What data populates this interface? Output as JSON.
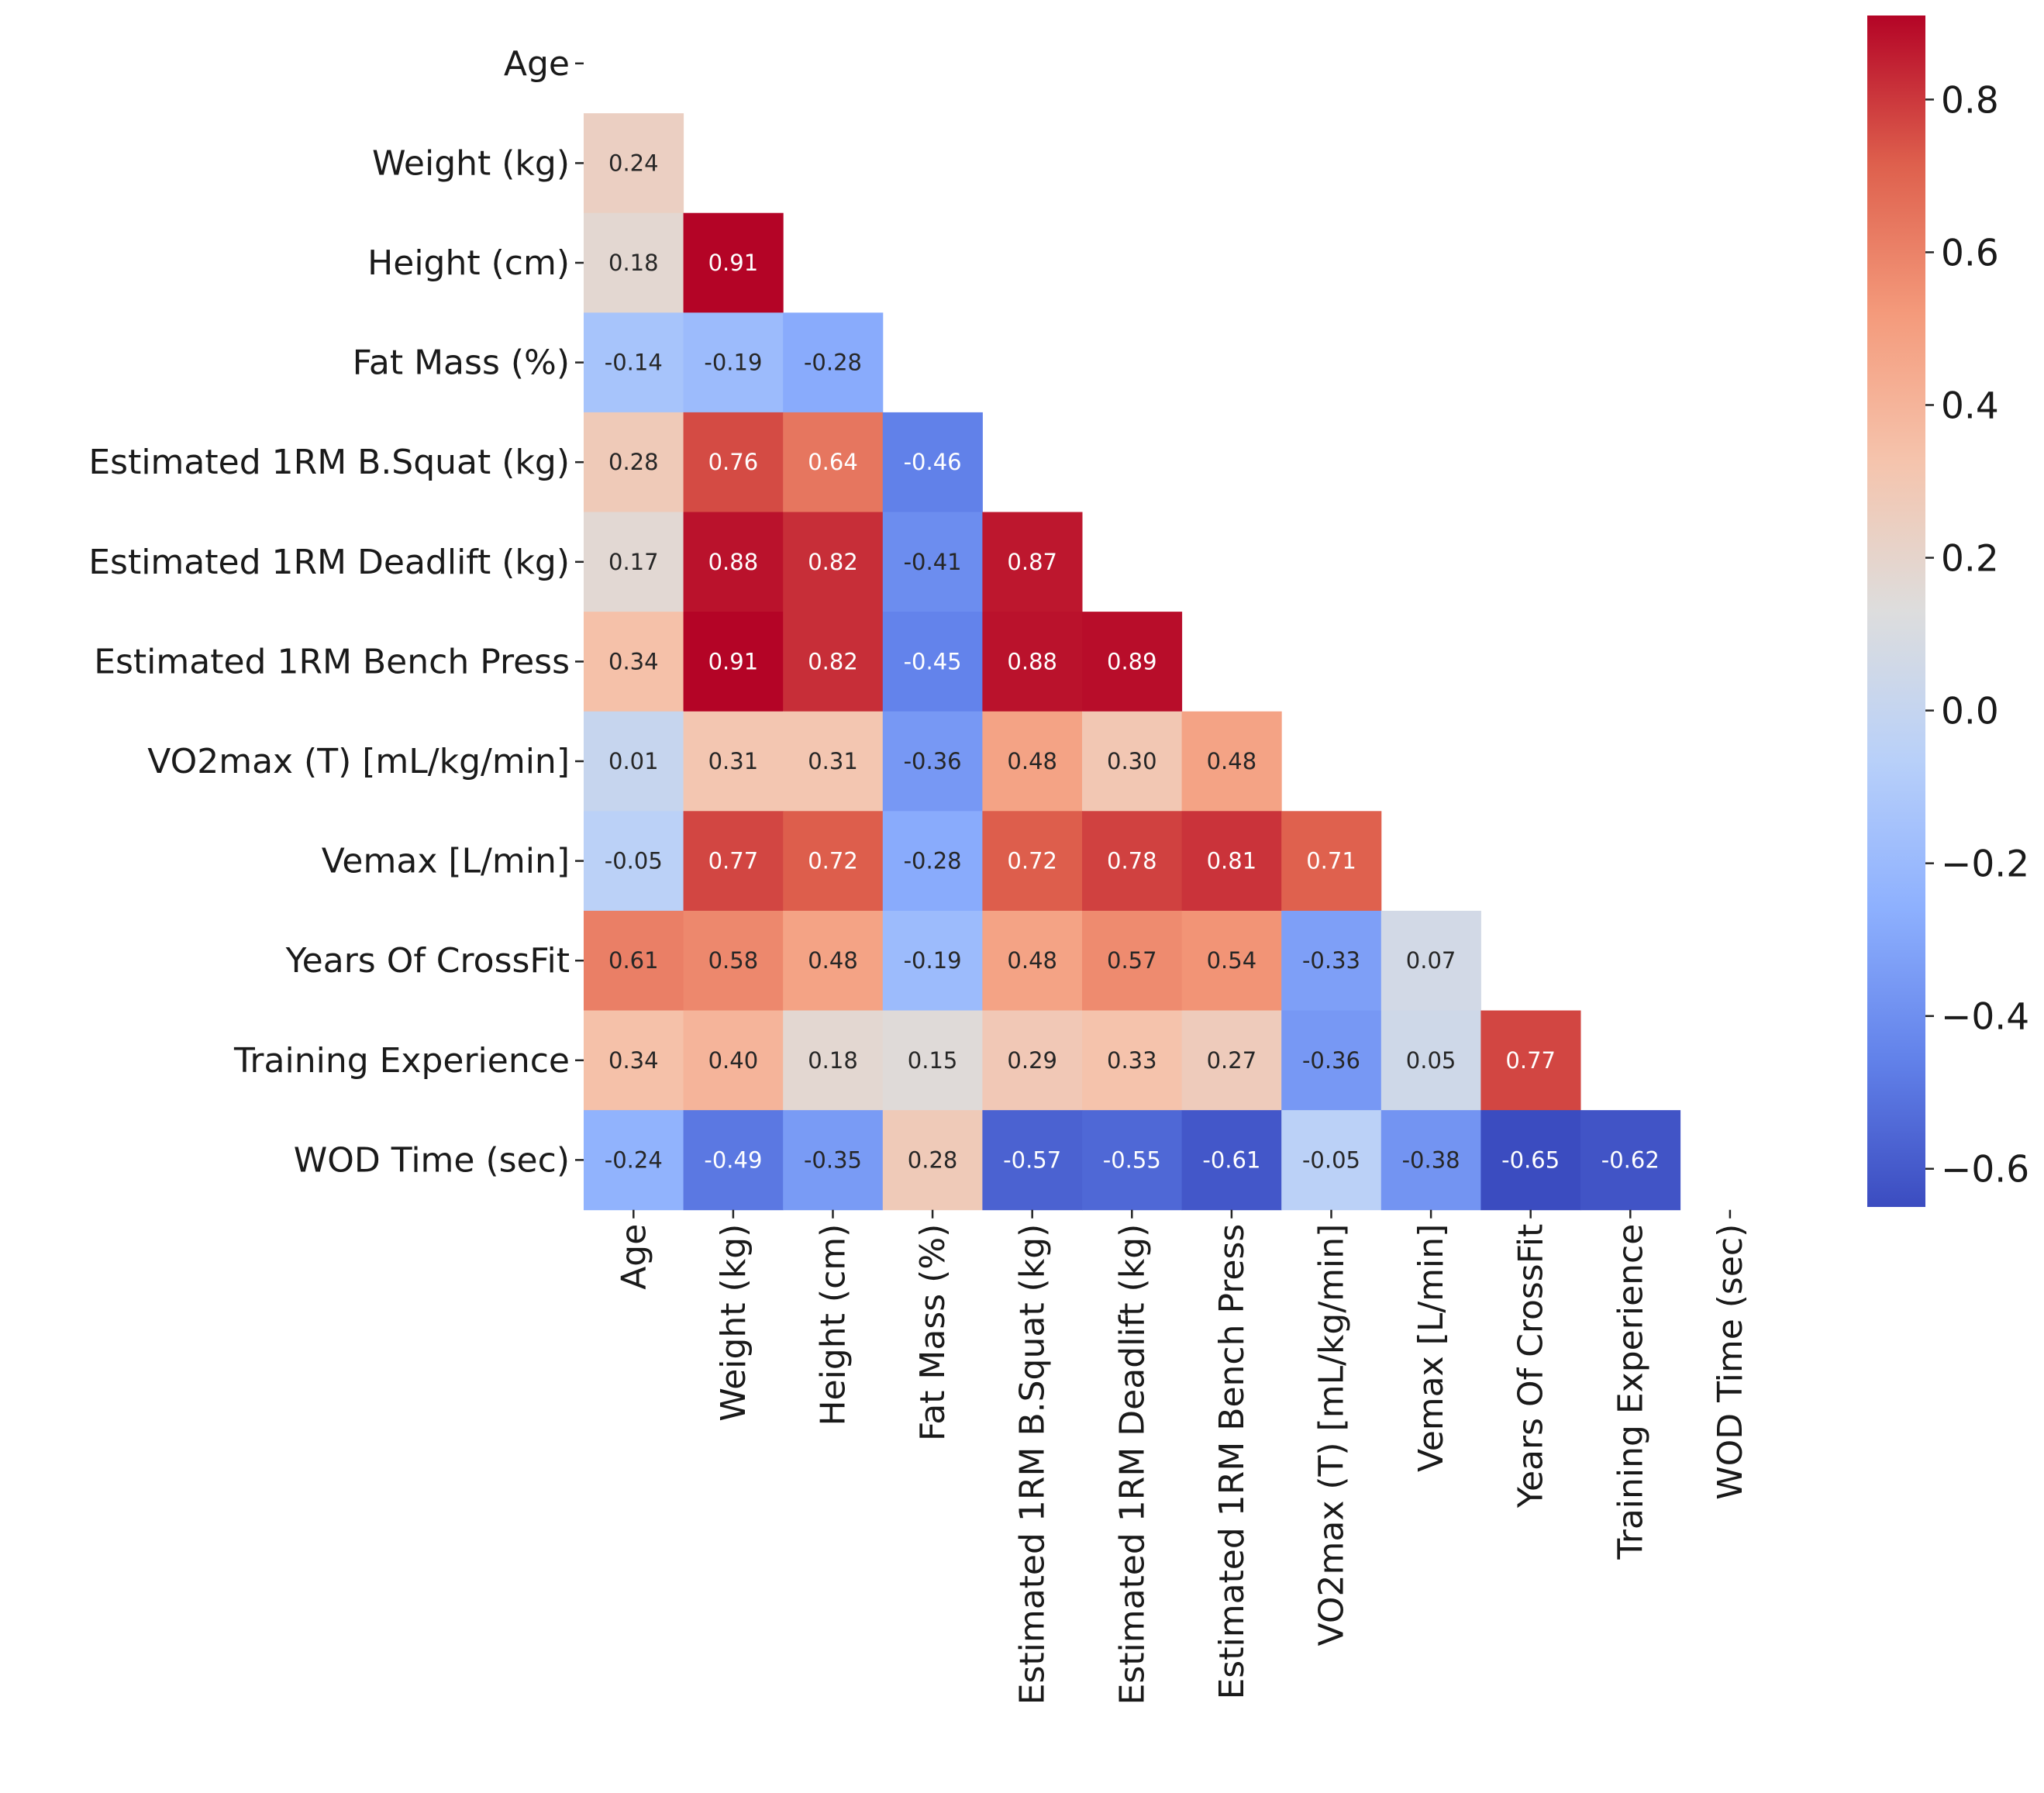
{
  "chart_data": {
    "type": "heatmap",
    "title": "",
    "xlabel": "",
    "ylabel": "",
    "colormap": "coolwarm",
    "vmin": -0.65,
    "vmax": 0.91,
    "mask": "upper-triangle-including-diagonal",
    "labels": [
      "Age",
      "Weight (kg)",
      "Height (cm)",
      "Fat Mass (%)",
      "Estimated 1RM B.Squat (kg)",
      "Estimated 1RM Deadlift (kg)",
      "Estimated 1RM Bench Press",
      "VO2max (T) [mL/kg/min]",
      "Vemax [L/min]",
      "Years Of CrossFit",
      "Training Experience",
      "WOD Time (sec)"
    ],
    "matrix": [
      [],
      [
        "0.24"
      ],
      [
        "0.18",
        "0.91"
      ],
      [
        "-0.14",
        "-0.19",
        "-0.28"
      ],
      [
        "0.28",
        "0.76",
        "0.64",
        "-0.46"
      ],
      [
        "0.17",
        "0.88",
        "0.82",
        "-0.41",
        "0.87"
      ],
      [
        "0.34",
        "0.91",
        "0.82",
        "-0.45",
        "0.88",
        "0.89"
      ],
      [
        "0.01",
        "0.31",
        "0.31",
        "-0.36",
        "0.48",
        "0.30",
        "0.48"
      ],
      [
        "-0.05",
        "0.77",
        "0.72",
        "-0.28",
        "0.72",
        "0.78",
        "0.81",
        "0.71"
      ],
      [
        "0.61",
        "0.58",
        "0.48",
        "-0.19",
        "0.48",
        "0.57",
        "0.54",
        "-0.33",
        "0.07"
      ],
      [
        "0.34",
        "0.40",
        "0.18",
        "0.15",
        "0.29",
        "0.33",
        "0.27",
        "-0.36",
        "0.05",
        "0.77"
      ],
      [
        "-0.24",
        "-0.49",
        "-0.35",
        "0.28",
        "-0.57",
        "-0.55",
        "-0.61",
        "-0.05",
        "-0.38",
        "-0.65",
        "-0.62"
      ]
    ],
    "colorbar": {
      "ticks": [
        0.8,
        0.6,
        0.4,
        0.2,
        0.0,
        -0.2,
        -0.4,
        -0.6
      ],
      "tick_labels": [
        "0.8",
        "0.6",
        "0.4",
        "0.2",
        "0.0",
        "−0.2",
        "−0.4",
        "−0.6"
      ]
    },
    "grid": false,
    "legend": "colorbar-right"
  }
}
